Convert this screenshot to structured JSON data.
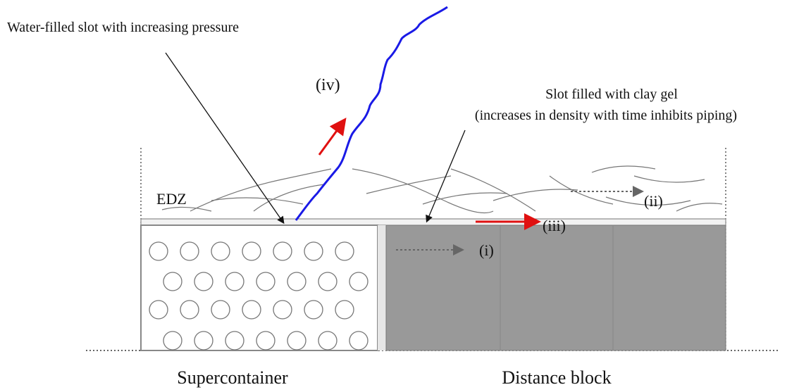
{
  "labels": {
    "water_slot": "Water-filled slot with increasing pressure",
    "iv": "(iv)",
    "clay_slot_line1": "Slot filled with clay gel",
    "clay_slot_line2": "(increases in density with time inhibits piping)",
    "edz": "EDZ",
    "ii": "(ii)",
    "iii": "(iii)",
    "i": "(i)",
    "supercontainer": "Supercontainer",
    "distance_block": "Distance block"
  }
}
